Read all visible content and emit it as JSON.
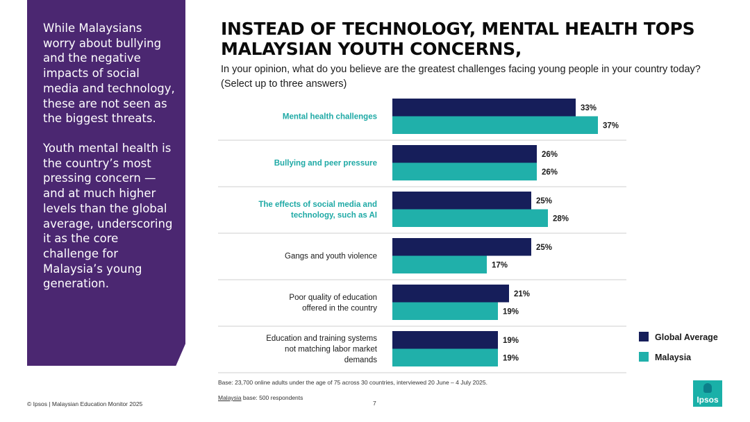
{
  "side_panel": {
    "paragraph1": "While Malaysians worry about bullying and the negative impacts of social media and technology, these are not seen as the biggest threats.",
    "paragraph2": "Youth mental health is the country’s most pressing concern — and at much higher levels than the global average, underscoring it as the core challenge for Malaysia’s young generation."
  },
  "heading": {
    "title": "INSTEAD OF TECHNOLOGY, MENTAL HEALTH TOPS MALAYSIAN YOUTH CONCERNS,",
    "question": "In your opinion, what do you believe are the greatest challenges facing young people in your country today? (Select up to three answers)"
  },
  "chart_data": {
    "type": "bar",
    "orientation": "horizontal",
    "categories": [
      "Mental health challenges",
      "Bullying and peer pressure",
      "The effects of social media and technology, such as AI",
      "Gangs and youth violence",
      "Poor quality of education offered in the country",
      "Education and training systems not matching labor market demands"
    ],
    "highlighted_categories": [
      0,
      1,
      2
    ],
    "series": [
      {
        "name": "Global Average",
        "color": "#161e5a",
        "values": [
          33,
          26,
          25,
          25,
          21,
          19
        ]
      },
      {
        "name": "Malaysia",
        "color": "#20b0aa",
        "values": [
          37,
          26,
          28,
          17,
          19,
          19
        ]
      }
    ],
    "value_suffix": "%",
    "highlight_color": "#1ea9a5",
    "legend_position": "right"
  },
  "footer": {
    "base": "Base: 23,700 online adults under the age of 75 across 30 countries, interviewed 20 June – 4 July 2025.",
    "malaysia_base_label": "Malaysia",
    "malaysia_base_rest": " base: 500 respondents",
    "copyright": "© Ipsos | Malaysian Education Monitor 2025",
    "page_number": "7",
    "logo_text": "Ipsos"
  }
}
